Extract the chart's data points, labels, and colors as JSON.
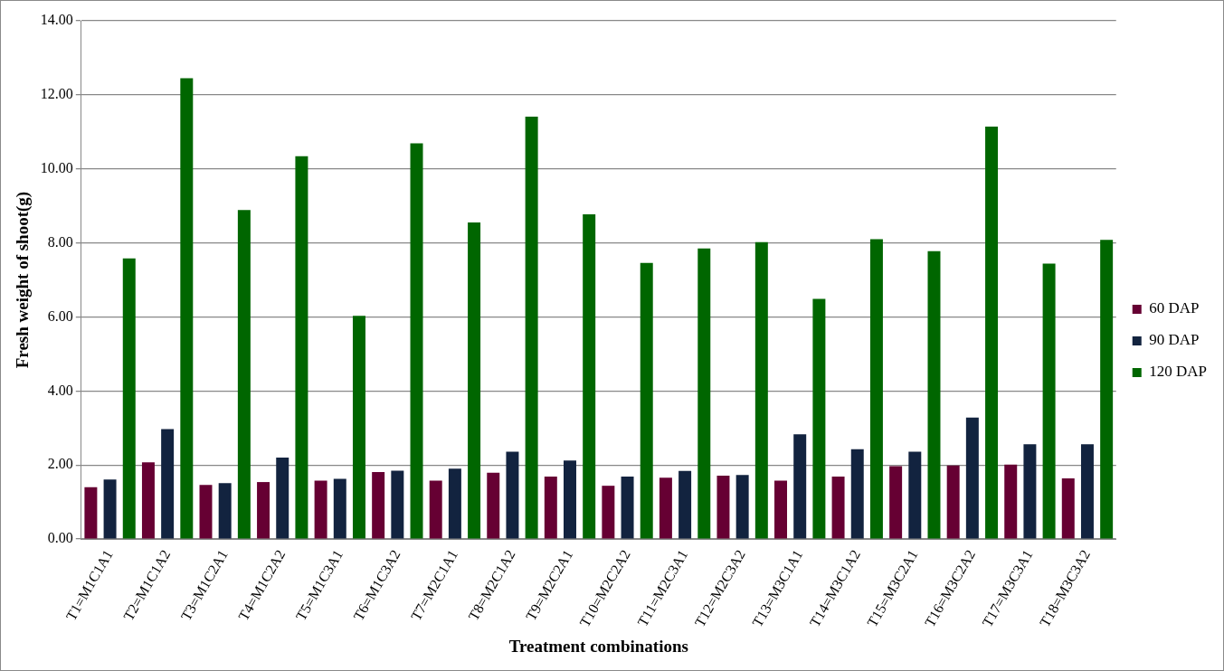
{
  "chart_data": {
    "type": "bar",
    "xlabel": "Treatment combinations",
    "ylabel": "Fresh weight of shoot(g)",
    "categories": [
      "T1=M1C1A1",
      "T2=M1C1A2",
      "T3=M1C2A1",
      "T4=M1C2A2",
      "T5=M1C3A1",
      "T6=M1C3A2",
      "T7=M2C1A1",
      "T8=M2C1A2",
      "T9=M2C2A1",
      "T10=M2C2A2",
      "T11=M2C3A1",
      "T12=M2C3A2",
      "T13=M3C1A1",
      "T14=M3C1A2",
      "T15=M3C2A1",
      "T16=M3C2A2",
      "T17=M3C3A1",
      "T18=M3C3A2"
    ],
    "series": [
      {
        "name": "60 DAP",
        "color": "#660033",
        "values": [
          1.4,
          2.07,
          1.46,
          1.54,
          1.58,
          1.81,
          1.58,
          1.79,
          1.69,
          1.44,
          1.66,
          1.71,
          1.58,
          1.69,
          1.97,
          1.99,
          2.01,
          1.64
        ]
      },
      {
        "name": "90 DAP",
        "color": "#12233f",
        "values": [
          1.61,
          2.97,
          1.51,
          2.2,
          1.63,
          1.85,
          1.9,
          2.36,
          2.12,
          1.69,
          1.84,
          1.73,
          2.83,
          2.43,
          2.36,
          3.28,
          2.56,
          2.56
        ]
      },
      {
        "name": "120 DAP",
        "color": "#006600",
        "values": [
          7.58,
          12.45,
          8.89,
          10.34,
          6.03,
          10.69,
          8.55,
          11.41,
          8.77,
          7.46,
          7.85,
          8.02,
          6.49,
          8.1,
          7.78,
          11.14,
          7.44,
          8.08
        ]
      }
    ],
    "ylim": [
      0,
      14
    ],
    "yticks": [
      {
        "value": 0,
        "label": "0.00"
      },
      {
        "value": 2,
        "label": "2.00"
      },
      {
        "value": 4,
        "label": "4.00"
      },
      {
        "value": 6,
        "label": "6.00"
      },
      {
        "value": 8,
        "label": "8.00"
      },
      {
        "value": 10,
        "label": "10.00"
      },
      {
        "value": 12,
        "label": "12.00"
      },
      {
        "value": 14,
        "label": "14.00"
      }
    ],
    "grid": "y",
    "legend": "right"
  }
}
